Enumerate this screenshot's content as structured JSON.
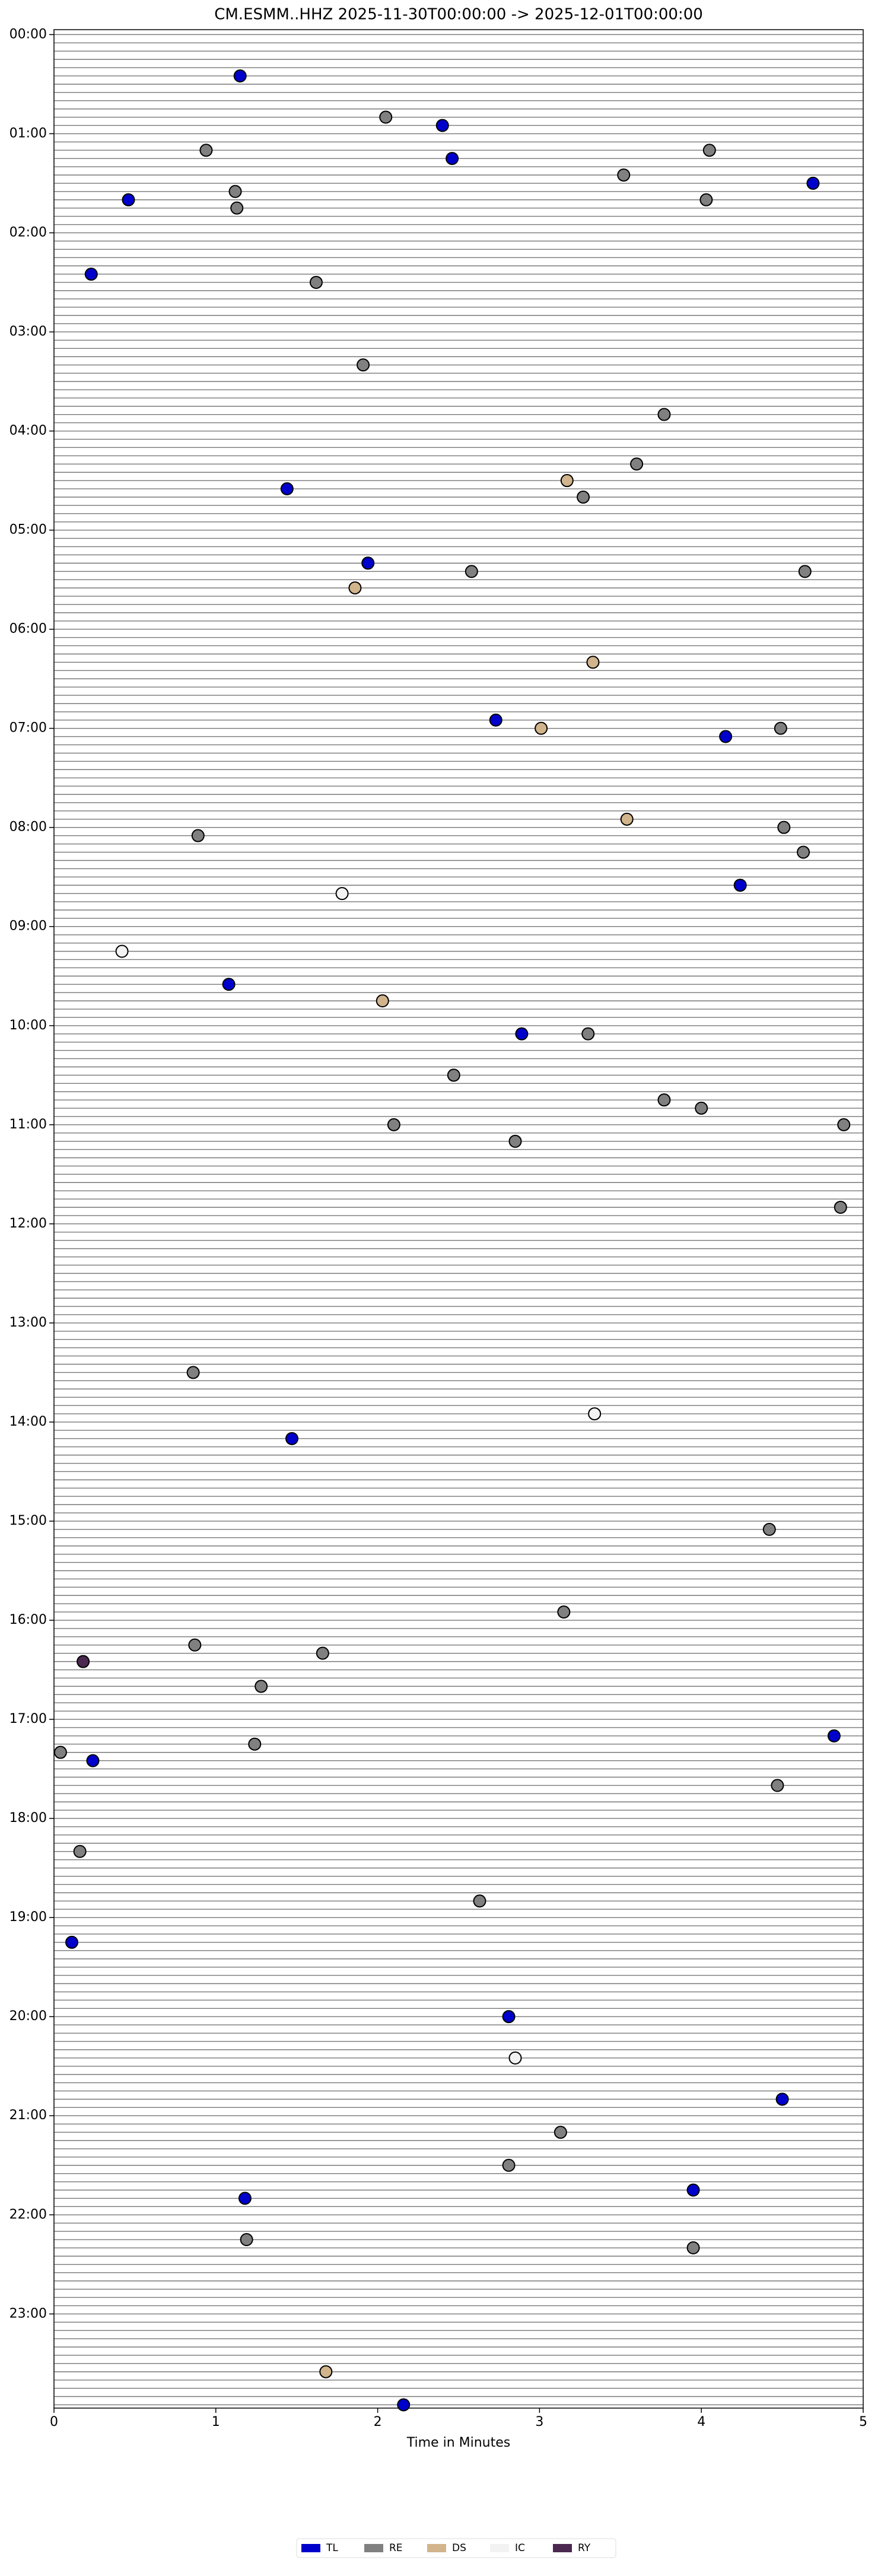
{
  "chart_data": {
    "type": "scatter",
    "title": "CM.ESMM..HHZ  2025-11-30T00:00:00 -> 2025-12-01T00:00:00",
    "x_label": "Time in Minutes",
    "xlim": [
      0,
      5
    ],
    "xticks": [
      0,
      1,
      2,
      3,
      4,
      5
    ],
    "ylim": [
      23.95,
      -0.05
    ],
    "yticks": [
      {
        "value": 0,
        "label": "00:00"
      },
      {
        "value": 1,
        "label": "01:00"
      },
      {
        "value": 2,
        "label": "02:00"
      },
      {
        "value": 3,
        "label": "03:00"
      },
      {
        "value": 4,
        "label": "04:00"
      },
      {
        "value": 5,
        "label": "05:00"
      },
      {
        "value": 6,
        "label": "06:00"
      },
      {
        "value": 7,
        "label": "07:00"
      },
      {
        "value": 8,
        "label": "08:00"
      },
      {
        "value": 9,
        "label": "09:00"
      },
      {
        "value": 10,
        "label": "10:00"
      },
      {
        "value": 11,
        "label": "11:00"
      },
      {
        "value": 12,
        "label": "12:00"
      },
      {
        "value": 13,
        "label": "13:00"
      },
      {
        "value": 14,
        "label": "14:00"
      },
      {
        "value": 15,
        "label": "15:00"
      },
      {
        "value": 16,
        "label": "16:00"
      },
      {
        "value": 17,
        "label": "17:00"
      },
      {
        "value": 18,
        "label": "18:00"
      },
      {
        "value": 19,
        "label": "19:00"
      },
      {
        "value": 20,
        "label": "20:00"
      },
      {
        "value": 21,
        "label": "21:00"
      },
      {
        "value": 22,
        "label": "22:00"
      },
      {
        "value": 23,
        "label": "23:00"
      }
    ],
    "legend": "bottom",
    "series": [
      {
        "name": "TL",
        "color": "#0000cc",
        "x": [
          1.15,
          2.4,
          2.46,
          4.69,
          0.46,
          0.23,
          1.44,
          1.94,
          2.73,
          4.15,
          4.24,
          1.08,
          2.89,
          1.47,
          4.82,
          0.24,
          0.11,
          2.81,
          4.5,
          3.95,
          1.18,
          2.16
        ],
        "y": [
          0.417,
          0.917,
          1.25,
          1.5,
          1.667,
          2.417,
          4.583,
          5.333,
          6.917,
          7.083,
          8.583,
          9.583,
          10.083,
          14.167,
          17.167,
          17.417,
          19.25,
          20.0,
          20.833,
          21.75,
          21.833,
          23.917
        ]
      },
      {
        "name": "RE",
        "color": "#808080",
        "x": [
          2.05,
          0.94,
          4.05,
          3.52,
          1.12,
          4.03,
          1.13,
          1.62,
          1.91,
          3.77,
          3.6,
          3.27,
          2.58,
          4.64,
          4.49,
          0.89,
          4.51,
          4.63,
          3.3,
          2.47,
          3.77,
          4.0,
          2.1,
          4.88,
          2.85,
          4.86,
          0.86,
          4.42,
          3.15,
          0.87,
          1.66,
          1.28,
          0.04,
          1.24,
          4.47,
          0.16,
          2.63,
          3.13,
          2.81,
          1.19,
          3.95
        ],
        "y": [
          0.833,
          1.167,
          1.167,
          1.417,
          1.583,
          1.667,
          1.75,
          2.5,
          3.333,
          3.833,
          4.333,
          4.667,
          5.417,
          5.417,
          7.0,
          8.083,
          8.0,
          8.25,
          10.083,
          10.5,
          10.75,
          10.833,
          11.0,
          11.0,
          11.167,
          11.833,
          13.5,
          15.083,
          15.917,
          16.25,
          16.333,
          16.667,
          17.333,
          17.25,
          17.667,
          18.333,
          18.833,
          21.167,
          21.5,
          22.25,
          22.333
        ]
      },
      {
        "name": "DS",
        "color": "#d2b48c",
        "x": [
          3.17,
          1.86,
          3.33,
          3.01,
          3.54,
          2.03,
          1.68
        ],
        "y": [
          4.5,
          5.583,
          6.333,
          7.0,
          7.917,
          9.75,
          23.583
        ]
      },
      {
        "name": "IC",
        "color": "#f2f2f2",
        "x": [
          1.78,
          0.42,
          3.34,
          2.85
        ],
        "y": [
          8.667,
          9.25,
          13.917,
          20.417
        ]
      },
      {
        "name": "RY",
        "color": "#4b2850",
        "x": [
          0.18
        ],
        "y": [
          16.417
        ]
      }
    ]
  }
}
